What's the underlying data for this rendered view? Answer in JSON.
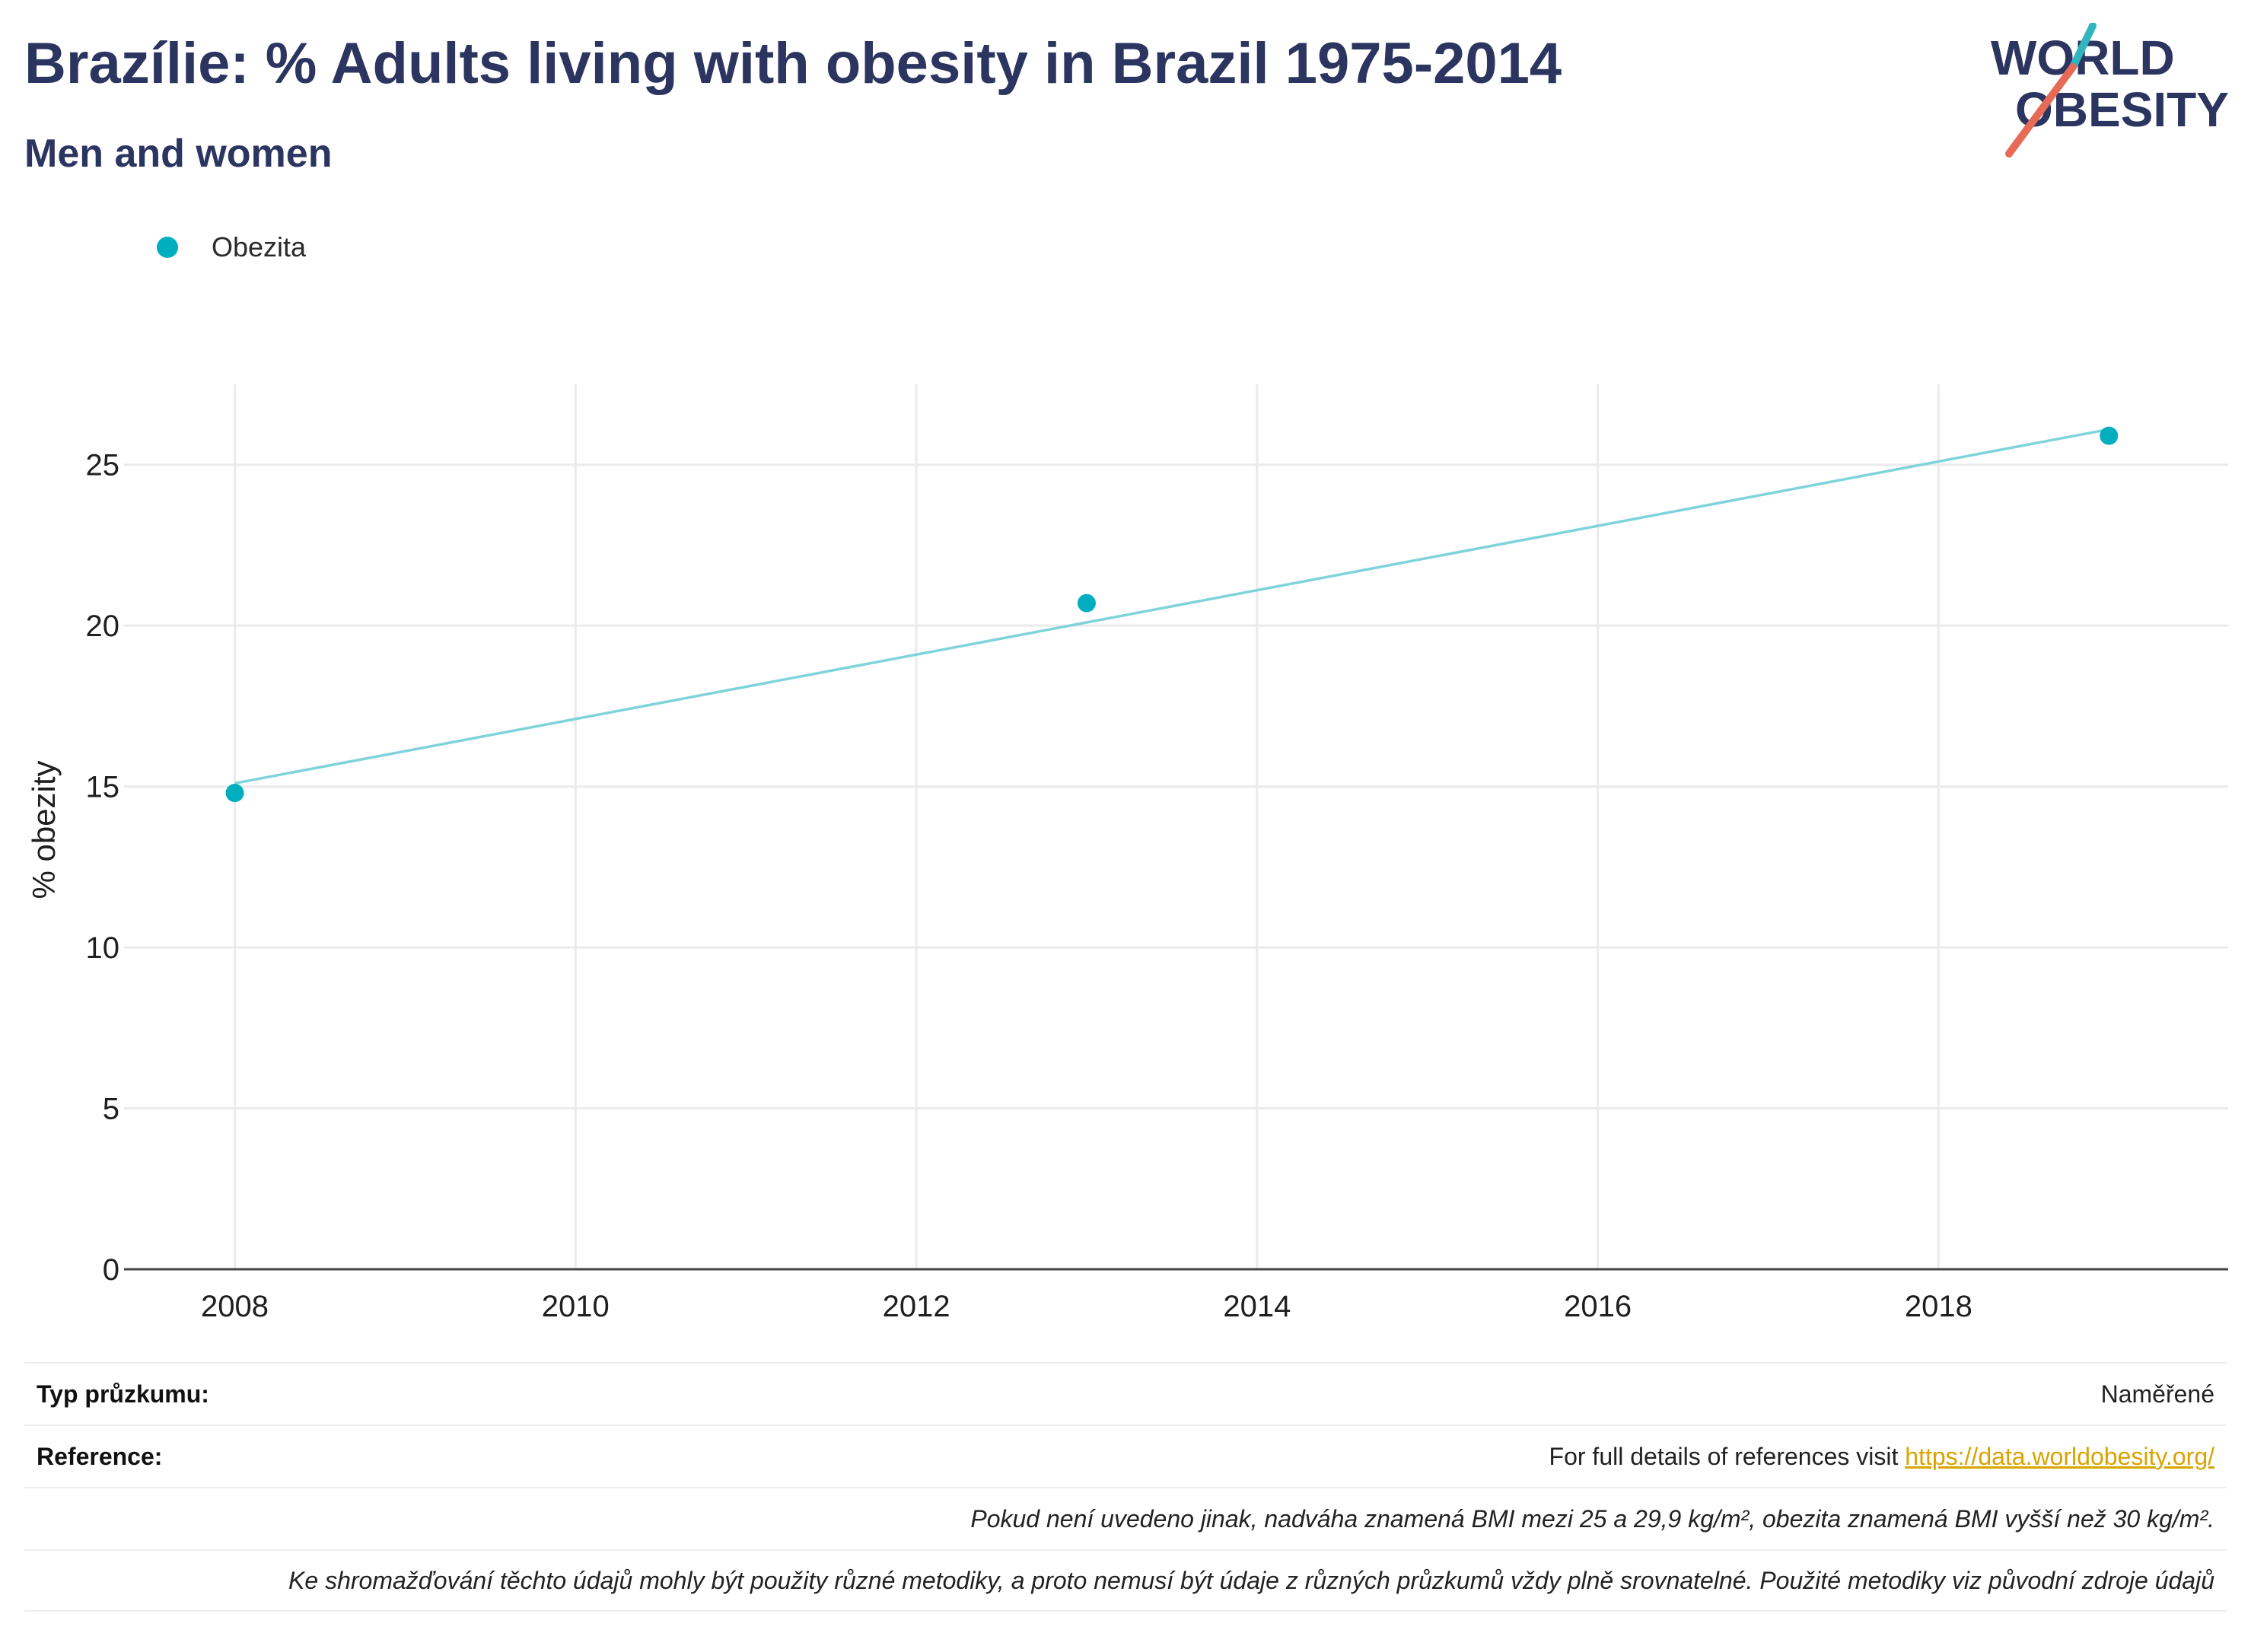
{
  "header": {
    "title": "Brazílie: % Adults living with obesity in Brazil 1975-2014",
    "subtitle": "Men and women"
  },
  "logo": {
    "line1": "WORLD",
    "line2": "OBESITY"
  },
  "legend": {
    "items": [
      {
        "label": "Obezita",
        "color": "#00aebf"
      }
    ]
  },
  "chart_data": {
    "type": "scatter",
    "title": "Brazílie: % Adults living with obesity in Brazil 1975-2014",
    "subtitle": "Men and women",
    "xlabel": "",
    "ylabel": "% obezity",
    "xlim": [
      2007.35,
      2019.7
    ],
    "ylim": [
      0,
      27.5
    ],
    "xticks": [
      2008,
      2010,
      2012,
      2014,
      2016,
      2018
    ],
    "yticks": [
      0,
      5,
      10,
      15,
      20,
      25
    ],
    "grid": true,
    "legend_position": "top-left",
    "series": [
      {
        "name": "Obezita",
        "color": "#00aebf",
        "points": [
          {
            "x": 2008,
            "y": 14.8
          },
          {
            "x": 2013,
            "y": 20.7
          },
          {
            "x": 2019,
            "y": 25.9
          }
        ]
      }
    ],
    "trendline": {
      "color": "#7fd3db",
      "start": {
        "x": 2008,
        "y": 15.1
      },
      "end": {
        "x": 2019,
        "y": 26.1
      }
    }
  },
  "footer": {
    "survey_type_label": "Typ průzkumu:",
    "survey_type_value": "Naměřené",
    "references_label": "Reference:",
    "references_text": "For full details of references visit ",
    "references_link": "https://data.worldobesity.org/",
    "note_bmi": "Pokud není uvedeno jinak, nadváha znamená BMI mezi 25 a 29,9 kg/m², obezita znamená BMI vyšší než 30 kg/m².",
    "note_methods": "Ke shromažďování těchto údajů mohly být použity různé metodiky, a proto nemusí být údaje z různých průzkumů vždy plně srovnatelné. Použité metodiky viz původní zdroje údajů"
  }
}
